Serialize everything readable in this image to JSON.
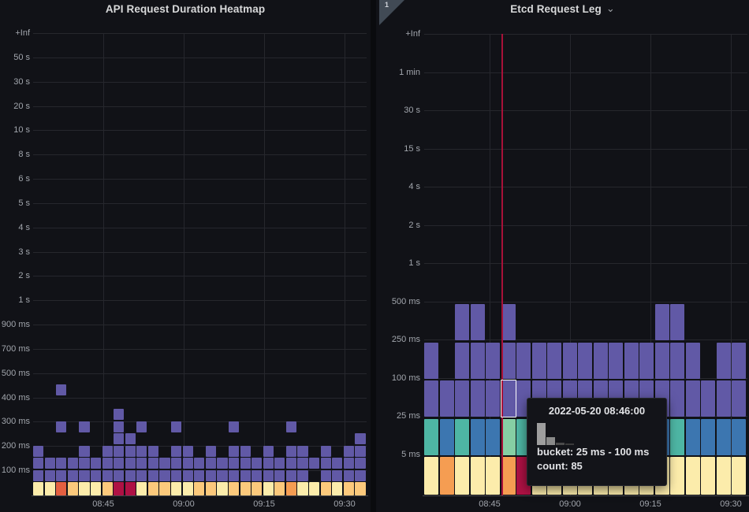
{
  "left_panel": {
    "title": "API Request Duration Heatmap"
  },
  "right_panel": {
    "title": "Etcd Request Leg",
    "chevron": "⌄",
    "badge_count": "1"
  },
  "tooltip": {
    "timestamp": "2022-05-20 08:46:00",
    "bucket_label": "bucket: 25 ms - 100 ms",
    "count_label": "count: 85",
    "histogram_bar_heights": [
      28,
      10,
      3,
      2
    ]
  },
  "colors": {
    "purple": "#6159a6",
    "pale": "#fcecab",
    "tan": "#fcc97c",
    "orange": "#f59d52",
    "coral": "#e45f40",
    "crimson": "#ae1144",
    "blue": "#3c76b0",
    "teal": "#4eb6a4",
    "lightgreen": "#86cfa4",
    "annotation_red": "#a81138",
    "hist_bar1": "#9e9e9e",
    "hist_bar2": "#8a8a8a",
    "hist_bar3": "#4a4a4a",
    "hist_bar4": "#3a3a3a"
  },
  "chart_data": [
    {
      "type": "heatmap",
      "title": "API Request Duration Heatmap",
      "y_labels": [
        "+Inf",
        "50 s",
        "30 s",
        "20 s",
        "10 s",
        "8 s",
        "6 s",
        "5 s",
        "4 s",
        "3 s",
        "2 s",
        "1 s",
        "900 ms",
        "700 ms",
        "500 ms",
        "400 ms",
        "300 ms",
        "200 ms",
        "100 ms"
      ],
      "x_labels": [
        "08:45",
        "09:00",
        "09:15",
        "09:30"
      ],
      "legend": "off",
      "columns": [
        {
          "b": "pale",
          "r": [
            1,
            2,
            3
          ]
        },
        {
          "b": "pale",
          "r": [
            1,
            2
          ]
        },
        {
          "b": "coral",
          "r": [
            1,
            2,
            5,
            8
          ]
        },
        {
          "b": "tan",
          "r": [
            1,
            2
          ]
        },
        {
          "b": "pale",
          "r": [
            1,
            2,
            3,
            5
          ]
        },
        {
          "b": "pale",
          "r": [
            1,
            2
          ]
        },
        {
          "b": "tan",
          "r": [
            1,
            2,
            3
          ]
        },
        {
          "b": "crimson",
          "r": [
            1,
            2,
            3,
            4,
            5,
            6
          ]
        },
        {
          "b": "crimson",
          "r": [
            1,
            2,
            3,
            4
          ]
        },
        {
          "b": "pale",
          "r": [
            1,
            2,
            3,
            5
          ]
        },
        {
          "b": "tan",
          "r": [
            1,
            2,
            3
          ]
        },
        {
          "b": "tan",
          "r": [
            1,
            2
          ]
        },
        {
          "b": "pale",
          "r": [
            1,
            2,
            3,
            5
          ]
        },
        {
          "b": "pale",
          "r": [
            1,
            2,
            3
          ]
        },
        {
          "b": "tan",
          "r": [
            1,
            2
          ]
        },
        {
          "b": "tan",
          "r": [
            1,
            2,
            3
          ]
        },
        {
          "b": "pale",
          "r": [
            1,
            2
          ]
        },
        {
          "b": "tan",
          "r": [
            1,
            2,
            3,
            5
          ]
        },
        {
          "b": "tan",
          "r": [
            1,
            2,
            3
          ]
        },
        {
          "b": "tan",
          "r": [
            1,
            2
          ]
        },
        {
          "b": "pale",
          "r": [
            1,
            2,
            3
          ]
        },
        {
          "b": "tan",
          "r": [
            1,
            2
          ]
        },
        {
          "b": "orange",
          "r": [
            1,
            2,
            3,
            5
          ]
        },
        {
          "b": "pale",
          "r": [
            1,
            2,
            3
          ]
        },
        {
          "b": "pale",
          "r": [
            2
          ]
        },
        {
          "b": "tan",
          "r": [
            1,
            2,
            3
          ]
        },
        {
          "b": "pale",
          "r": [
            1,
            2
          ]
        },
        {
          "b": "tan",
          "r": [
            1,
            2,
            3
          ]
        },
        {
          "b": "tan",
          "r": [
            1,
            2,
            3,
            4
          ]
        }
      ]
    },
    {
      "type": "heatmap",
      "title": "Etcd Request Leg",
      "y_labels": [
        "+Inf",
        "1 min",
        "30 s",
        "15 s",
        "4 s",
        "2 s",
        "1 s",
        "500 ms",
        "250 ms",
        "100 ms",
        "25 ms",
        "5 ms"
      ],
      "x_labels": [
        "08:45",
        "09:00",
        "09:15",
        "09:30"
      ],
      "legend": "off",
      "annotation_time": "08:46",
      "highlight": {
        "col": 6,
        "row": 2,
        "bucket": "25 ms - 100 ms",
        "count": 85
      },
      "columns": [
        {
          "b": "pale",
          "t": "teal",
          "r": [
            2,
            3
          ]
        },
        {
          "b": "orange",
          "t": "blue",
          "r": [
            2
          ]
        },
        {
          "b": "pale",
          "t": "teal",
          "r": [
            2,
            3,
            4
          ]
        },
        {
          "b": "pale",
          "t": "blue",
          "r": [
            2,
            3,
            4
          ]
        },
        {
          "b": "pale",
          "t": "blue",
          "r": [
            2,
            3
          ]
        },
        {
          "b": "orange",
          "t": "lightgreen",
          "r": [
            2,
            3,
            4
          ]
        },
        {
          "b": "crimson",
          "t": "teal",
          "r": [
            2,
            3
          ]
        },
        {
          "b": "pale",
          "t": "blue",
          "r": [
            2,
            3
          ]
        },
        {
          "b": "pale",
          "t": "blue",
          "r": [
            2,
            3
          ]
        },
        {
          "b": "pale",
          "t": "teal",
          "r": [
            2,
            3
          ]
        },
        {
          "b": "pale",
          "t": "blue",
          "r": [
            2,
            3
          ]
        },
        {
          "b": "pale",
          "t": "blue",
          "r": [
            2,
            3
          ]
        },
        {
          "b": "pale",
          "t": "teal",
          "r": [
            2,
            3
          ]
        },
        {
          "b": "pale",
          "t": "blue",
          "r": [
            2,
            3
          ]
        },
        {
          "b": "pale",
          "t": "blue",
          "r": [
            2,
            3
          ]
        },
        {
          "b": "pale",
          "t": "blue",
          "r": [
            2,
            3,
            4
          ]
        },
        {
          "b": "pale",
          "t": "teal",
          "r": [
            2,
            3,
            4
          ]
        },
        {
          "b": "pale",
          "t": "blue",
          "r": [
            2,
            3
          ]
        },
        {
          "b": "pale",
          "t": "blue",
          "r": [
            2
          ]
        },
        {
          "b": "pale",
          "t": "blue",
          "r": [
            2,
            3
          ]
        },
        {
          "b": "pale",
          "t": "blue",
          "r": [
            2,
            3
          ]
        }
      ]
    }
  ]
}
